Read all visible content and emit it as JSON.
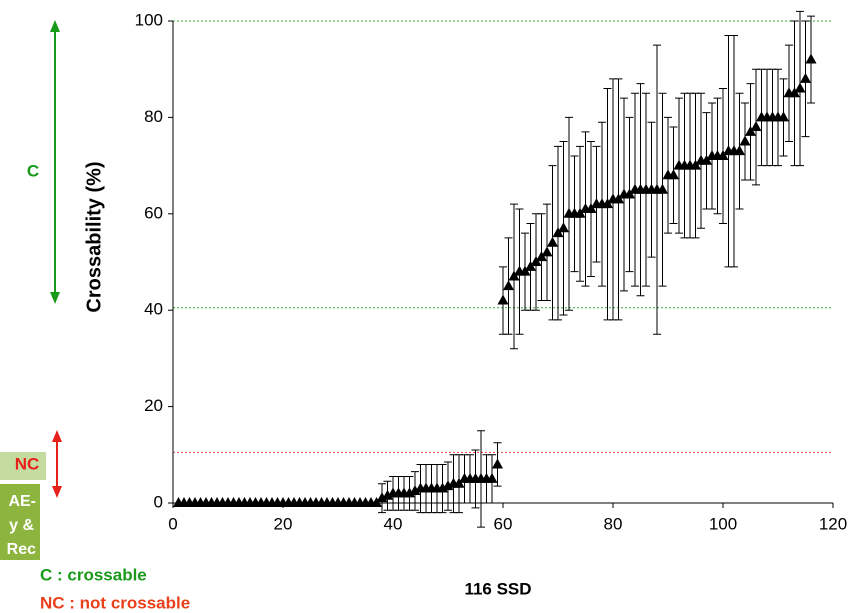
{
  "chart_data": {
    "type": "scatter",
    "ylabel": "Crossability (%)",
    "xlabel": "116 SSD",
    "xlim": [
      0,
      120
    ],
    "xticks": [
      0,
      20,
      40,
      60,
      80,
      100,
      120
    ],
    "ylim": [
      0,
      100
    ],
    "yticks": [
      0,
      20,
      40,
      60,
      80,
      100
    ],
    "color": "#000000",
    "reference_lines": [
      {
        "value": 100,
        "color": "#33aa33"
      },
      {
        "value": 40.5,
        "color": "#33aa33"
      },
      {
        "value": 10.5,
        "color": "#ee4444"
      }
    ],
    "zones": [
      {
        "label": "C",
        "color": "#1a9a1a"
      },
      {
        "label": "NC",
        "color": "#e8201a"
      }
    ],
    "legend": [
      {
        "label": "C : crossable",
        "color": "#1a9a1a"
      },
      {
        "label": "NC : not crossable",
        "color": "#e8401a"
      }
    ],
    "clipped_text": [
      "AE-",
      "y &",
      "Rec"
    ],
    "x": [
      1,
      2,
      3,
      4,
      5,
      6,
      7,
      8,
      9,
      10,
      11,
      12,
      13,
      14,
      15,
      16,
      17,
      18,
      19,
      20,
      21,
      22,
      23,
      24,
      25,
      26,
      27,
      28,
      29,
      30,
      31,
      32,
      33,
      34,
      35,
      36,
      37,
      38,
      39,
      40,
      41,
      42,
      43,
      44,
      45,
      46,
      47,
      48,
      49,
      50,
      51,
      52,
      53,
      54,
      55,
      56,
      57,
      58,
      59,
      60,
      61,
      62,
      63,
      64,
      65,
      66,
      67,
      68,
      69,
      70,
      71,
      72,
      73,
      74,
      75,
      76,
      77,
      78,
      79,
      80,
      81,
      82,
      83,
      84,
      85,
      86,
      87,
      88,
      89,
      90,
      91,
      92,
      93,
      94,
      95,
      96,
      97,
      98,
      99,
      100,
      101,
      102,
      103,
      104,
      105,
      106,
      107,
      108,
      109,
      110,
      111,
      112,
      113,
      114,
      115,
      116
    ],
    "values": [
      0,
      0,
      0,
      0,
      0,
      0,
      0,
      0,
      0,
      0,
      0,
      0,
      0,
      0,
      0,
      0,
      0,
      0,
      0,
      0,
      0,
      0,
      0,
      0,
      0,
      0,
      0,
      0,
      0,
      0,
      0,
      0,
      0,
      0,
      0,
      0,
      0,
      1,
      1.5,
      2,
      2,
      2,
      2,
      2.5,
      3,
      3,
      3,
      3,
      3,
      3.5,
      4,
      4,
      5,
      5,
      5,
      5,
      5,
      5,
      8,
      42,
      45,
      47,
      48,
      48,
      49,
      50,
      51,
      52,
      54,
      56,
      57,
      60,
      60,
      60,
      61,
      61,
      62,
      62,
      62,
      63,
      63,
      64,
      64,
      65,
      65,
      65,
      65,
      65,
      65,
      68,
      68,
      70,
      70,
      70,
      70,
      71,
      71,
      72,
      72,
      72,
      73,
      73,
      73,
      75,
      77,
      78,
      80,
      80,
      80,
      80,
      80,
      85,
      85,
      86,
      88,
      92
    ],
    "errors": [
      0,
      0,
      0,
      0,
      0,
      0,
      0,
      0,
      0,
      0,
      0,
      0,
      0,
      0,
      0,
      0,
      0,
      0,
      0,
      0,
      0,
      0,
      0,
      0,
      0,
      0,
      0,
      0,
      0,
      0,
      0,
      0,
      0,
      0,
      0,
      0,
      0,
      3,
      3,
      3.5,
      3.5,
      3.5,
      3.5,
      4,
      5,
      5,
      5,
      5,
      5,
      5,
      6,
      6,
      5,
      5,
      6,
      10,
      5,
      5,
      4.5,
      7,
      10,
      15,
      13,
      8,
      9,
      10,
      9,
      10,
      16,
      18,
      18,
      20,
      12,
      14,
      16,
      14,
      12,
      17,
      24,
      25,
      25,
      20,
      16,
      20,
      22,
      20,
      14,
      30,
      20,
      12,
      10,
      14,
      15,
      15,
      15,
      14,
      10,
      11,
      12,
      14,
      24,
      24,
      12,
      8,
      10,
      12,
      10,
      10,
      10,
      10,
      8,
      10,
      15,
      16,
      12,
      9
    ]
  }
}
